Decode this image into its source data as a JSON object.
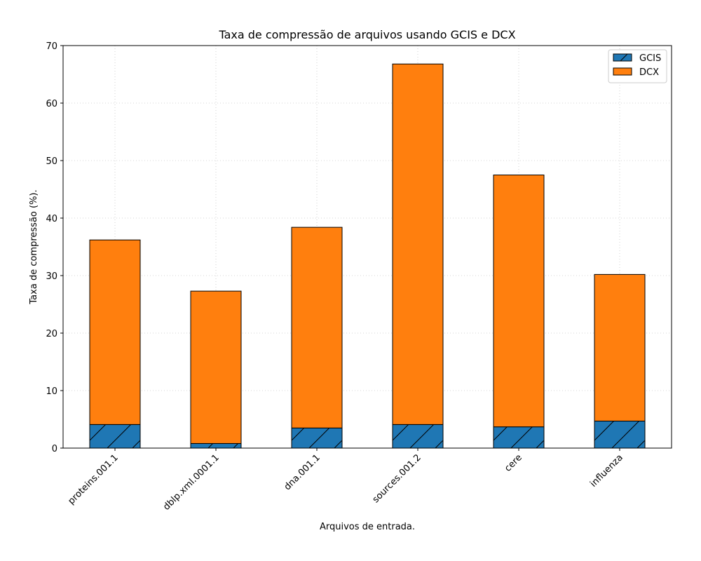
{
  "chart_data": {
    "type": "bar",
    "stacked": true,
    "title": "Taxa de compressão de arquivos usando GCIS e DCX",
    "xlabel": "Arquivos de entrada.",
    "ylabel": "Taxa de compressão (%).",
    "categories": [
      "proteins.001.1",
      "dblp.xml.0001.1",
      "dna.001.1",
      "sources.001.2",
      "cere",
      "influenza"
    ],
    "series": [
      {
        "name": "GCIS",
        "values": [
          4.1,
          0.8,
          3.5,
          4.1,
          3.7,
          4.7
        ],
        "color": "#1f77b4",
        "hatch": "/"
      },
      {
        "name": "DCX",
        "values": [
          32.1,
          26.5,
          34.9,
          62.7,
          43.8,
          25.5
        ],
        "color": "#ff7f0e"
      }
    ],
    "ylim": [
      0,
      70
    ],
    "yticks": [
      0,
      10,
      20,
      30,
      40,
      50,
      60,
      70
    ],
    "grid": true,
    "legend_position": "top-right"
  }
}
